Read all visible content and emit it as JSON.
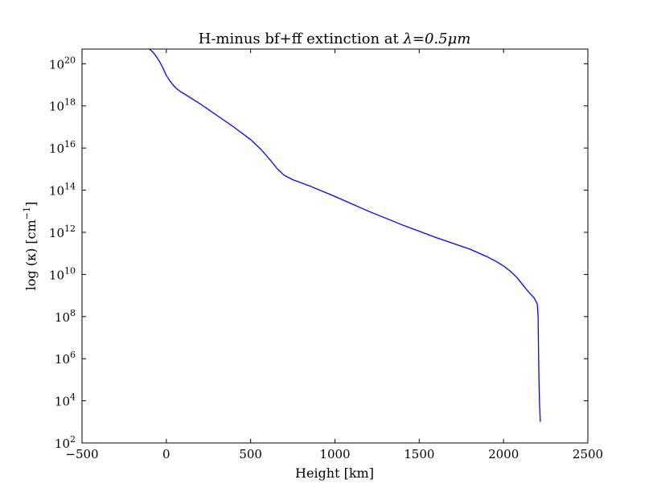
{
  "chart_data": {
    "type": "line",
    "title_prefix": "H-minus bf+ff extinction at ",
    "title_math": "λ=0.5μm",
    "xlabel": "Height [km]",
    "ylabel_prefix": "log (κ) [cm",
    "ylabel_sup": "−1",
    "ylabel_suffix": "]",
    "xlim": [
      -500,
      2500
    ],
    "ylim_log10": [
      2,
      20.7
    ],
    "y_scale": "log",
    "grid": false,
    "x_ticks": [
      -500,
      0,
      500,
      1000,
      1500,
      2000,
      2500
    ],
    "x_tick_labels": [
      "−500",
      "0",
      "500",
      "1000",
      "1500",
      "2000",
      "2500"
    ],
    "y_tick_exponents": [
      2,
      4,
      6,
      8,
      10,
      12,
      14,
      16,
      18,
      20
    ],
    "y_tick_base": "10",
    "series": [
      {
        "color": "#0000ff",
        "x": [
          -100,
          -80,
          -60,
          -40,
          -20,
          0,
          20,
          50,
          80,
          120,
          200,
          300,
          400,
          500,
          560,
          620,
          660,
          700,
          750,
          850,
          1000,
          1200,
          1400,
          1600,
          1800,
          1900,
          1960,
          2000,
          2040,
          2080,
          2120,
          2150,
          2180,
          2200,
          2205,
          2208,
          2210,
          2212,
          2214,
          2216,
          2218
        ],
        "y_log10": [
          20.7,
          20.55,
          20.35,
          20.1,
          19.8,
          19.45,
          19.2,
          18.9,
          18.7,
          18.5,
          18.1,
          17.55,
          17.0,
          16.4,
          15.95,
          15.4,
          15.0,
          14.7,
          14.5,
          14.2,
          13.7,
          13.0,
          12.35,
          11.75,
          11.2,
          10.85,
          10.6,
          10.4,
          10.15,
          9.85,
          9.45,
          9.15,
          8.9,
          8.6,
          8.0,
          6.0,
          5.0,
          4.3,
          3.8,
          3.3,
          3.0
        ]
      }
    ]
  }
}
